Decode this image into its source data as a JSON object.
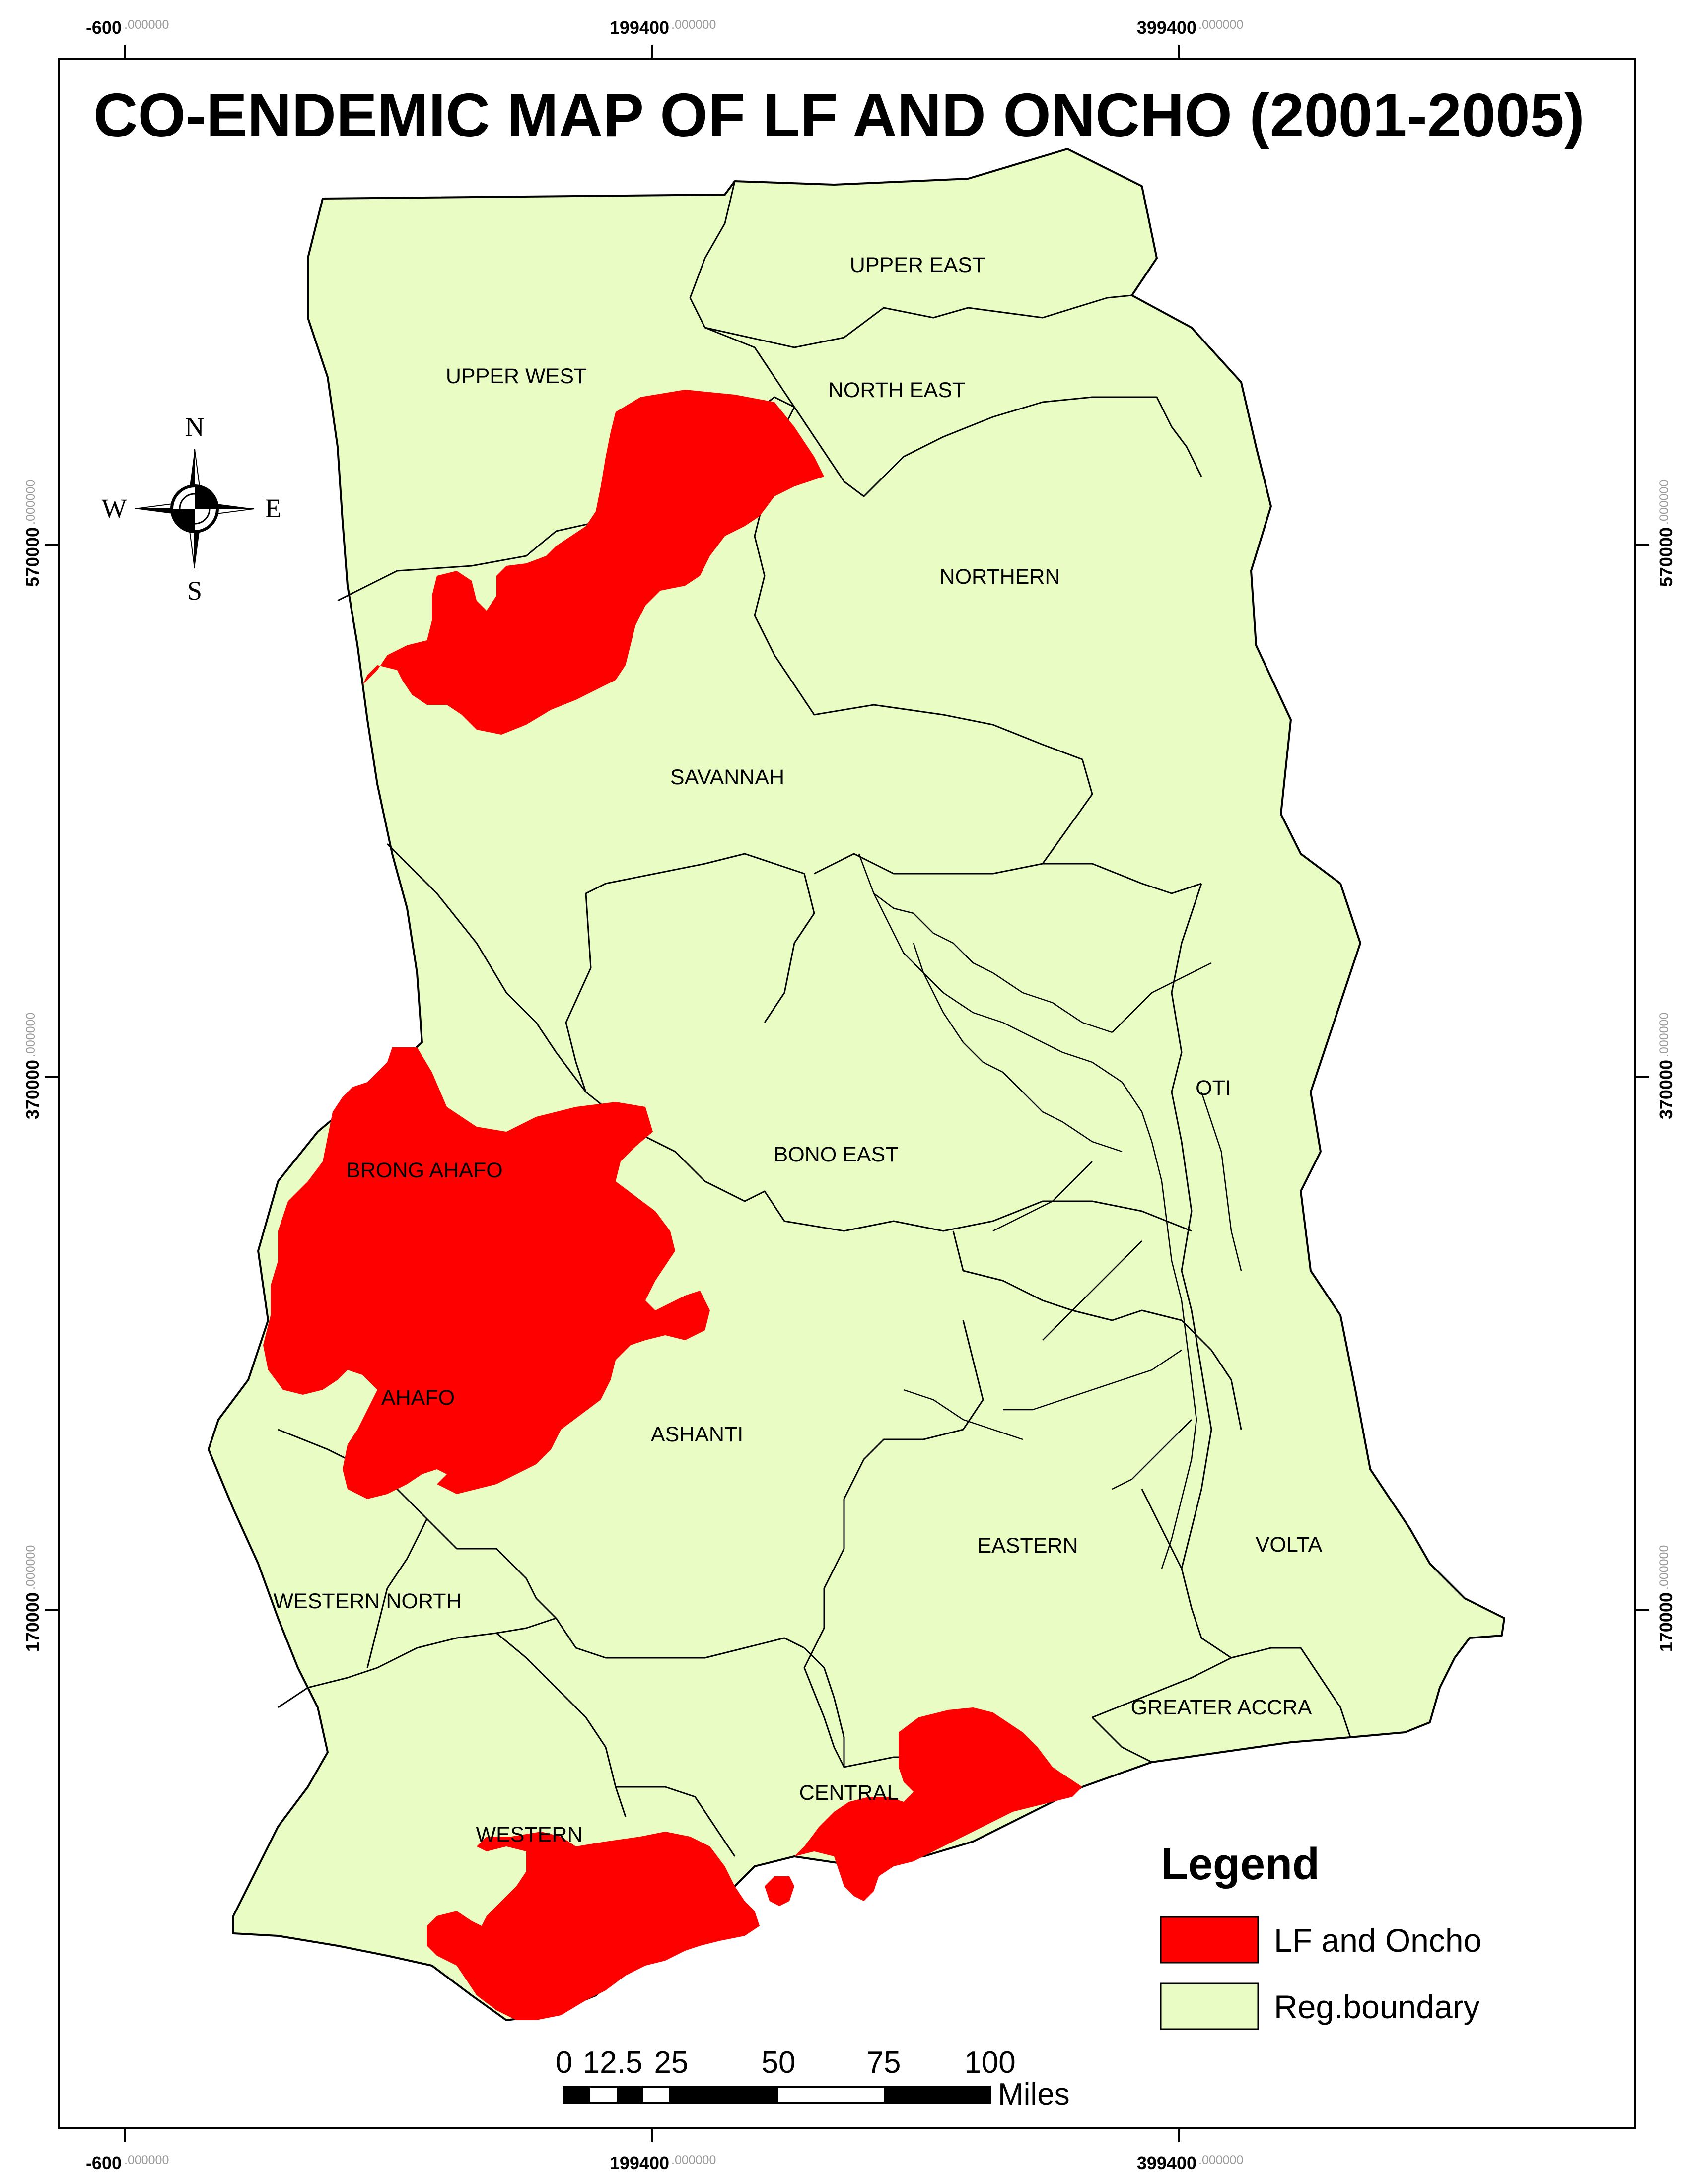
{
  "title": "CO-ENDEMIC MAP OF LF AND ONCHO (2001-2005)",
  "graticule": {
    "x_ticks": [
      {
        "main": "-600",
        "dec": ".000000"
      },
      {
        "main": "199400",
        "dec": ".000000"
      },
      {
        "main": "399400",
        "dec": ".000000"
      }
    ],
    "y_ticks": [
      {
        "main": "570000",
        "dec": ".000000"
      },
      {
        "main": "370000",
        "dec": ".000000"
      },
      {
        "main": "170000",
        "dec": ".000000"
      }
    ]
  },
  "regions": [
    {
      "name": "UPPER EAST"
    },
    {
      "name": "UPPER WEST"
    },
    {
      "name": "NORTH EAST"
    },
    {
      "name": "NORTHERN"
    },
    {
      "name": "SAVANNAH"
    },
    {
      "name": "OTI"
    },
    {
      "name": "BONO EAST"
    },
    {
      "name": "BRONG AHAFO"
    },
    {
      "name": "AHAFO"
    },
    {
      "name": "ASHANTI"
    },
    {
      "name": "EASTERN"
    },
    {
      "name": "VOLTA"
    },
    {
      "name": "WESTERN NORTH"
    },
    {
      "name": "GREATER ACCRA"
    },
    {
      "name": "CENTRAL"
    },
    {
      "name": "WESTERN"
    }
  ],
  "compass": {
    "n": "N",
    "s": "S",
    "e": "E",
    "w": "W"
  },
  "legend": {
    "title": "Legend",
    "items": [
      {
        "label": "LF and Oncho",
        "color": "#ff0000"
      },
      {
        "label": "Reg.boundary",
        "color": "#e8fcc4"
      }
    ]
  },
  "scale_bar": {
    "ticks": [
      "0",
      "12.5",
      "25",
      "50",
      "75",
      "100"
    ],
    "unit": "Miles"
  },
  "colors": {
    "land": "#e8fcc4",
    "endemic": "#ff0000",
    "border": "#000000"
  }
}
